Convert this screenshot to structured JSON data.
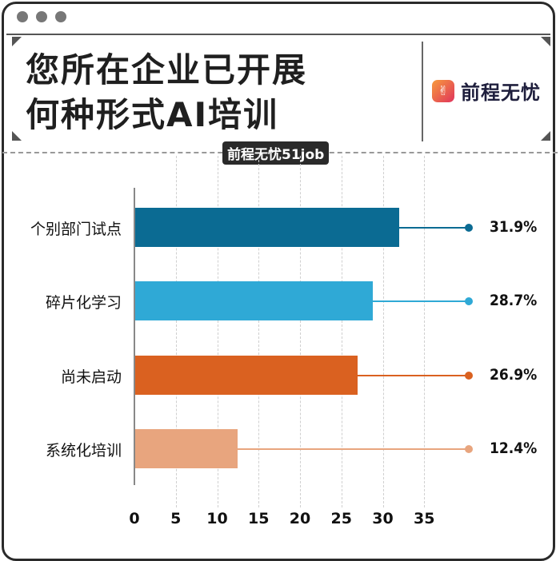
{
  "window": {
    "controls": [
      "dot-1",
      "dot-2",
      "dot-3"
    ]
  },
  "header": {
    "title_line1": "您所在企业已开展",
    "title_line2": "何种形式AI培训",
    "logo_text": "前程无忧",
    "badge": "前程无忧51job"
  },
  "colors": {
    "bar1": "#0b6b93",
    "bar2": "#2fa9d6",
    "bar3": "#da6120",
    "bar4": "#e8a57e"
  },
  "chart_data": {
    "type": "bar",
    "orientation": "horizontal",
    "title": "您所在企业已开展何种形式AI培训",
    "categories": [
      "个别部门试点",
      "碎片化学习",
      "尚未启动",
      "系统化培训"
    ],
    "values": [
      31.9,
      28.7,
      26.9,
      12.4
    ],
    "value_labels": [
      "31.9%",
      "28.7%",
      "26.9%",
      "12.4%"
    ],
    "xticks": [
      "0",
      "5",
      "10",
      "15",
      "20",
      "25",
      "30",
      "35"
    ],
    "xlim": [
      0,
      40
    ],
    "xlabel": "",
    "ylabel": "",
    "grid": true,
    "source": "前程无忧51job"
  }
}
